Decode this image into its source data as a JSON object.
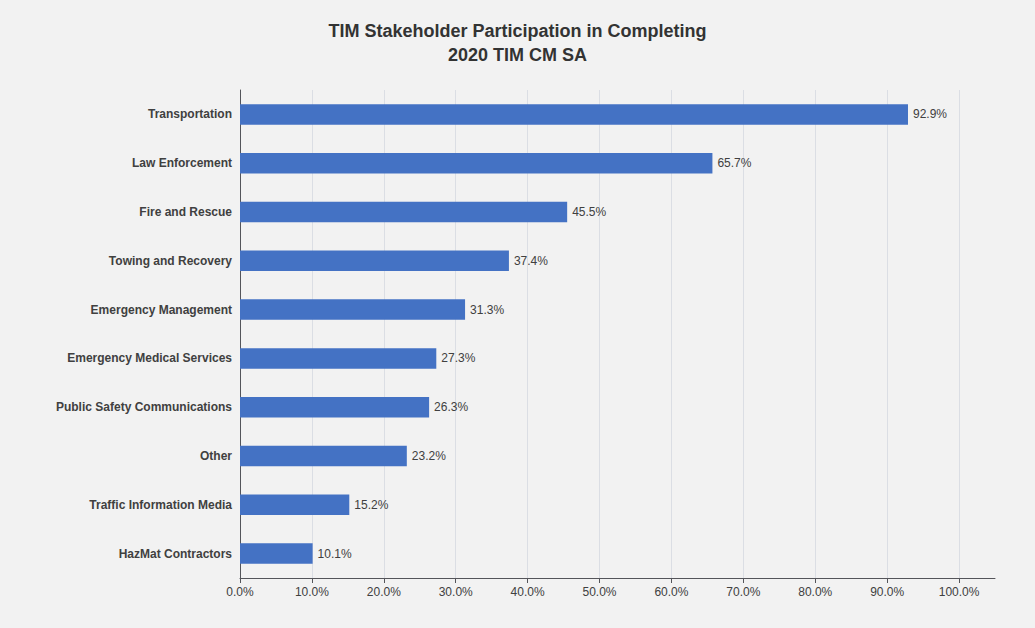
{
  "chart_data": {
    "type": "bar",
    "orientation": "horizontal",
    "title": "TIM Stakeholder Participation in Completing\n2020 TIM CM SA",
    "categories": [
      "HazMat Contractors",
      "Traffic Information Media",
      "Other",
      "Public Safety Communications",
      "Emergency Medical Services",
      "Emergency Management",
      "Towing and Recovery",
      "Fire and Rescue",
      "Law Enforcement",
      "Transportation"
    ],
    "values": [
      10.1,
      15.2,
      23.2,
      26.3,
      27.3,
      31.3,
      37.4,
      45.5,
      65.7,
      92.9
    ],
    "value_labels": [
      "10.1%",
      "15.2%",
      "23.2%",
      "26.3%",
      "27.3%",
      "31.3%",
      "37.4%",
      "45.5%",
      "65.7%",
      "92.9%"
    ],
    "data_labels": true,
    "color": "#4472C4",
    "xlim": [
      0,
      105
    ],
    "xticks": [
      {
        "value": 0,
        "label": "0.0%"
      },
      {
        "value": 10,
        "label": "10.0%"
      },
      {
        "value": 20,
        "label": "20.0%"
      },
      {
        "value": 30,
        "label": "30.0%"
      },
      {
        "value": 40,
        "label": "40.0%"
      },
      {
        "value": 50,
        "label": "50.0%"
      },
      {
        "value": 60,
        "label": "60.0%"
      },
      {
        "value": 70,
        "label": "70.0%"
      },
      {
        "value": 80,
        "label": "80.0%"
      },
      {
        "value": 90,
        "label": "90.0%"
      },
      {
        "value": 100,
        "label": "100.0%"
      }
    ],
    "grid": true
  }
}
